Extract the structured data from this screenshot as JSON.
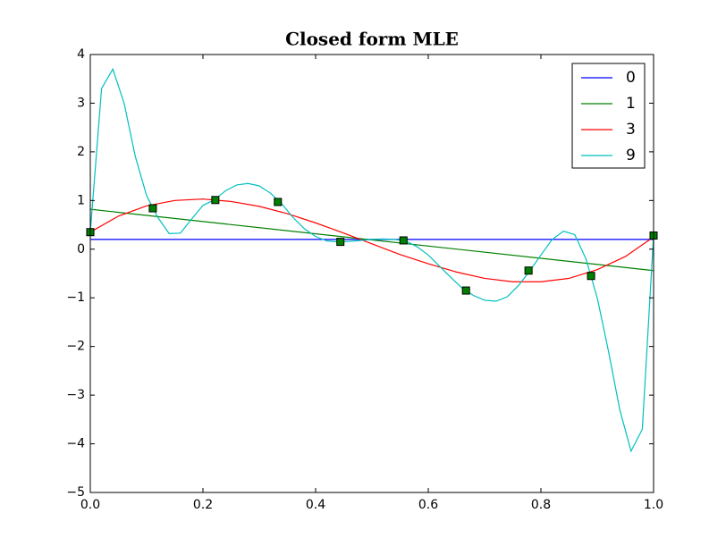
{
  "chart_data": {
    "type": "line",
    "title": "Closed form MLE",
    "xlim": [
      0,
      1
    ],
    "ylim": [
      -5,
      4
    ],
    "xticks": [
      {
        "value": 0,
        "label": "0.0"
      },
      {
        "value": 0.2,
        "label": "0.2"
      },
      {
        "value": 0.4,
        "label": "0.4"
      },
      {
        "value": 0.6,
        "label": "0.6"
      },
      {
        "value": 0.8,
        "label": "0.8"
      },
      {
        "value": 1,
        "label": "1.0"
      }
    ],
    "yticks": [
      {
        "value": -5,
        "label": "−5"
      },
      {
        "value": -4,
        "label": "−4"
      },
      {
        "value": -3,
        "label": "−3"
      },
      {
        "value": -2,
        "label": "−2"
      },
      {
        "value": -1,
        "label": "−1"
      },
      0,
      1,
      2,
      3,
      4
    ],
    "legend": "upper right",
    "series": [
      {
        "name": "0",
        "color": "#0000ff",
        "x": [
          0,
          1
        ],
        "values": [
          0.2,
          0.2
        ]
      },
      {
        "name": "1",
        "color": "#008000",
        "x": [
          0,
          1
        ],
        "values": [
          0.82,
          -0.44
        ]
      },
      {
        "name": "3",
        "color": "#ff0000",
        "x": [
          0,
          0.05,
          0.1,
          0.15,
          0.2,
          0.25,
          0.3,
          0.35,
          0.4,
          0.45,
          0.5,
          0.55,
          0.6,
          0.65,
          0.7,
          0.75,
          0.8,
          0.85,
          0.9,
          0.95,
          1
        ],
        "values": [
          0.35,
          0.68,
          0.89,
          1.0,
          1.03,
          0.98,
          0.88,
          0.73,
          0.54,
          0.33,
          0.11,
          -0.11,
          -0.3,
          -0.47,
          -0.6,
          -0.67,
          -0.67,
          -0.6,
          -0.42,
          -0.15,
          0.25
        ]
      },
      {
        "name": "9",
        "color": "#00bfbf",
        "x": [
          0,
          0.02,
          0.04,
          0.06,
          0.08,
          0.1,
          0.12,
          0.14,
          0.16,
          0.18,
          0.2,
          0.22,
          0.24,
          0.26,
          0.28,
          0.3,
          0.32,
          0.34,
          0.36,
          0.38,
          0.4,
          0.42,
          0.44,
          0.46,
          0.48,
          0.5,
          0.52,
          0.54,
          0.56,
          0.58,
          0.6,
          0.62,
          0.64,
          0.66,
          0.68,
          0.7,
          0.72,
          0.74,
          0.76,
          0.78,
          0.8,
          0.82,
          0.84,
          0.86,
          0.88,
          0.9,
          0.92,
          0.94,
          0.96,
          0.98,
          1
        ],
        "values": [
          0.35,
          3.3,
          3.7,
          3.0,
          1.9,
          1.1,
          0.65,
          0.32,
          0.33,
          0.62,
          0.9,
          1.01,
          1.2,
          1.32,
          1.35,
          1.3,
          1.15,
          0.93,
          0.65,
          0.42,
          0.26,
          0.17,
          0.15,
          0.16,
          0.18,
          0.2,
          0.21,
          0.2,
          0.17,
          0.05,
          -0.12,
          -0.35,
          -0.58,
          -0.8,
          -0.95,
          -1.05,
          -1.07,
          -0.98,
          -0.75,
          -0.45,
          -0.12,
          0.2,
          0.37,
          0.3,
          -0.2,
          -1.0,
          -2.1,
          -3.3,
          -4.15,
          -3.7,
          0.28
        ]
      }
    ],
    "scatter": {
      "color": "#008000",
      "marker": "square",
      "x": [
        0,
        0.111,
        0.222,
        0.333,
        0.444,
        0.556,
        0.667,
        0.778,
        0.889,
        1
      ],
      "values": [
        0.35,
        0.84,
        1.01,
        0.97,
        0.15,
        0.18,
        -0.85,
        -0.44,
        -0.55,
        0.28
      ]
    }
  }
}
